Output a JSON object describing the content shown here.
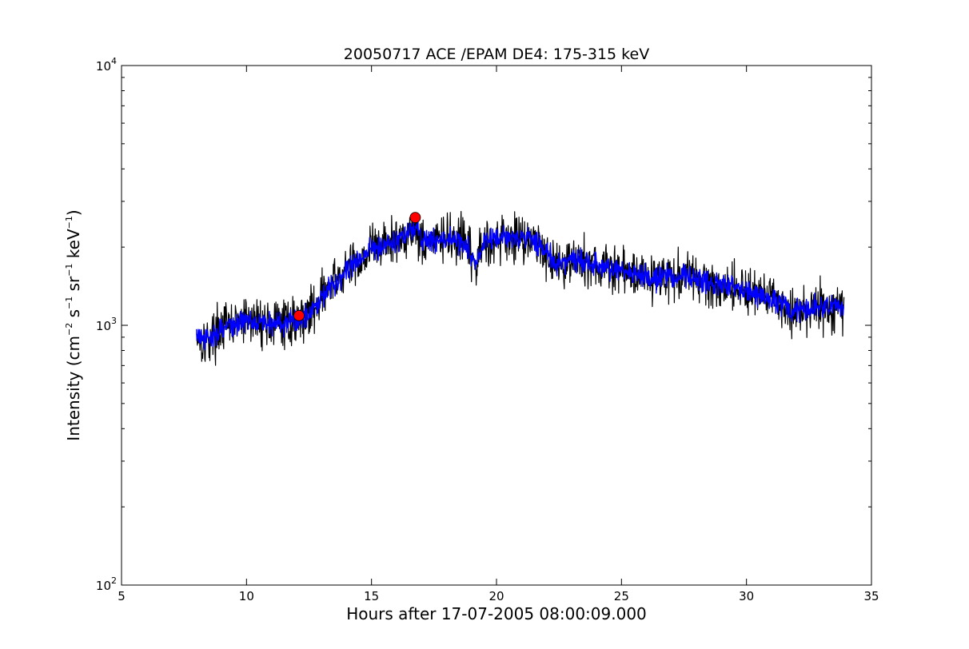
{
  "chart_data": {
    "type": "line",
    "title": "20050717 ACE /EPAM DE4: 175-315 keV",
    "xlabel": "Hours after 17-07-2005 08:00:09.000",
    "ylabel": {
      "prefix": "Intensity (cm",
      "sup1": "−2",
      "mid1": " s",
      "sup2": "−1",
      "mid2": " sr",
      "sup3": "−1",
      "mid3": " keV",
      "sup4": "−1",
      "suffix": ")"
    },
    "xlim": [
      5,
      35
    ],
    "ylim": [
      100,
      10000
    ],
    "y_scale": "log",
    "grid": false,
    "x_ticks": [
      5,
      10,
      15,
      20,
      25,
      30,
      35
    ],
    "x_tick_labels": [
      "5",
      "10",
      "15",
      "20",
      "25",
      "30",
      "35"
    ],
    "y_ticks": [
      {
        "value": 100,
        "base": "10",
        "exp": "2"
      },
      {
        "value": 1000,
        "base": "10",
        "exp": "3"
      },
      {
        "value": 10000,
        "base": "10",
        "exp": "4"
      }
    ],
    "series": [
      {
        "role": "raw",
        "color": "#000000",
        "noise": 0.045,
        "x": [
          8.0,
          8.3,
          8.6,
          9.0,
          9.5,
          10.0,
          10.5,
          11.0,
          11.5,
          12.0,
          12.5,
          12.8,
          13.0,
          13.3,
          13.6,
          14.0,
          14.3,
          14.6,
          15.0,
          15.5,
          16.0,
          16.5,
          16.8,
          17.0,
          17.5,
          18.0,
          18.5,
          18.8,
          19.0,
          19.2,
          19.5,
          20.0,
          20.5,
          21.0,
          21.5,
          22.0,
          22.5,
          23.0,
          23.5,
          24.0,
          24.5,
          25.0,
          25.5,
          26.0,
          26.5,
          27.0,
          27.5,
          28.0,
          28.5,
          29.0,
          29.5,
          30.0,
          30.5,
          31.0,
          31.5,
          31.8,
          32.0,
          32.5,
          33.0,
          33.5,
          33.9
        ],
        "y": [
          930,
          860,
          900,
          980,
          1000,
          1050,
          1040,
          1010,
          1020,
          1040,
          1120,
          1200,
          1320,
          1380,
          1480,
          1640,
          1720,
          1800,
          2000,
          2050,
          2100,
          2300,
          2380,
          2100,
          2120,
          2150,
          2100,
          2050,
          1800,
          1700,
          2100,
          2150,
          2180,
          2200,
          2150,
          1900,
          1700,
          1800,
          1750,
          1700,
          1640,
          1620,
          1600,
          1560,
          1520,
          1540,
          1560,
          1500,
          1450,
          1430,
          1400,
          1380,
          1300,
          1250,
          1200,
          1100,
          1150,
          1160,
          1170,
          1180,
          1160
        ]
      },
      {
        "role": "smoothed",
        "color": "#0000ff",
        "noise": 0.022,
        "x": [
          8.0,
          8.3,
          8.6,
          9.0,
          9.5,
          10.0,
          10.5,
          11.0,
          11.5,
          12.0,
          12.5,
          12.8,
          13.0,
          13.3,
          13.6,
          14.0,
          14.3,
          14.6,
          15.0,
          15.5,
          16.0,
          16.5,
          16.8,
          17.0,
          17.5,
          18.0,
          18.5,
          18.8,
          19.0,
          19.2,
          19.5,
          20.0,
          20.5,
          21.0,
          21.5,
          22.0,
          22.5,
          23.0,
          23.5,
          24.0,
          24.5,
          25.0,
          25.5,
          26.0,
          26.5,
          27.0,
          27.5,
          28.0,
          28.5,
          29.0,
          29.5,
          30.0,
          30.5,
          31.0,
          31.5,
          31.8,
          32.0,
          32.5,
          33.0,
          33.5,
          33.9
        ],
        "y": [
          930,
          860,
          900,
          980,
          1000,
          1050,
          1040,
          1010,
          1020,
          1040,
          1120,
          1200,
          1320,
          1380,
          1480,
          1640,
          1720,
          1800,
          2000,
          2050,
          2100,
          2300,
          2380,
          2100,
          2120,
          2150,
          2100,
          2050,
          1800,
          1700,
          2100,
          2150,
          2180,
          2200,
          2150,
          1900,
          1700,
          1800,
          1750,
          1700,
          1640,
          1620,
          1600,
          1560,
          1520,
          1540,
          1560,
          1500,
          1450,
          1430,
          1400,
          1380,
          1300,
          1250,
          1200,
          1100,
          1150,
          1160,
          1170,
          1180,
          1160
        ]
      }
    ],
    "markers": [
      {
        "name": "onset-marker",
        "x": 12.1,
        "y": 1090,
        "color": "#ff0000"
      },
      {
        "name": "peak-marker",
        "x": 16.75,
        "y": 2600,
        "color": "#ff0000"
      }
    ]
  }
}
